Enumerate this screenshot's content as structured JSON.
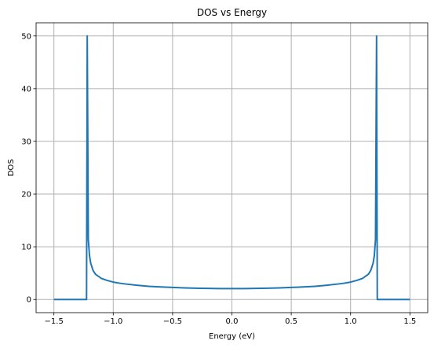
{
  "chart_data": {
    "type": "line",
    "title": "DOS vs Energy",
    "xlabel": "Energy (eV)",
    "ylabel": "DOS",
    "xlim": [
      -1.65,
      1.65
    ],
    "ylim": [
      -2.5,
      52.5
    ],
    "xticks": [
      -1.5,
      -1.0,
      -0.5,
      0.0,
      0.5,
      1.0,
      1.5
    ],
    "xtick_labels": [
      "−1.5",
      "−1.0",
      "−0.5",
      "0.0",
      "0.5",
      "1.0",
      "1.5"
    ],
    "yticks": [
      0,
      10,
      20,
      30,
      40,
      50
    ],
    "ytick_labels": [
      "0",
      "10",
      "20",
      "30",
      "40",
      "50"
    ],
    "grid": true,
    "series": [
      {
        "color": "#1f77b4",
        "x": [
          -1.5,
          -1.26,
          -1.225,
          -1.219,
          -1.21,
          -1.2,
          -1.19,
          -1.17,
          -1.15,
          -1.1,
          -1.05,
          -1.0,
          -0.95,
          -0.9,
          -0.8,
          -0.7,
          -0.6,
          -0.5,
          -0.4,
          -0.3,
          -0.2,
          -0.1,
          0.0,
          0.1,
          0.2,
          0.3,
          0.4,
          0.5,
          0.6,
          0.7,
          0.8,
          0.9,
          0.95,
          1.0,
          1.05,
          1.1,
          1.15,
          1.17,
          1.19,
          1.2,
          1.21,
          1.219,
          1.225,
          1.26,
          1.5
        ],
        "y": [
          0,
          0,
          0,
          50,
          11.4,
          8.3,
          6.9,
          5.5,
          4.8,
          4.0,
          3.6,
          3.3,
          3.1,
          2.95,
          2.7,
          2.5,
          2.38,
          2.28,
          2.2,
          2.14,
          2.1,
          2.07,
          2.06,
          2.07,
          2.1,
          2.14,
          2.2,
          2.28,
          2.38,
          2.5,
          2.7,
          2.95,
          3.1,
          3.3,
          3.6,
          4.0,
          4.8,
          5.5,
          6.9,
          8.3,
          11.4,
          50,
          0,
          0,
          0
        ]
      }
    ]
  }
}
